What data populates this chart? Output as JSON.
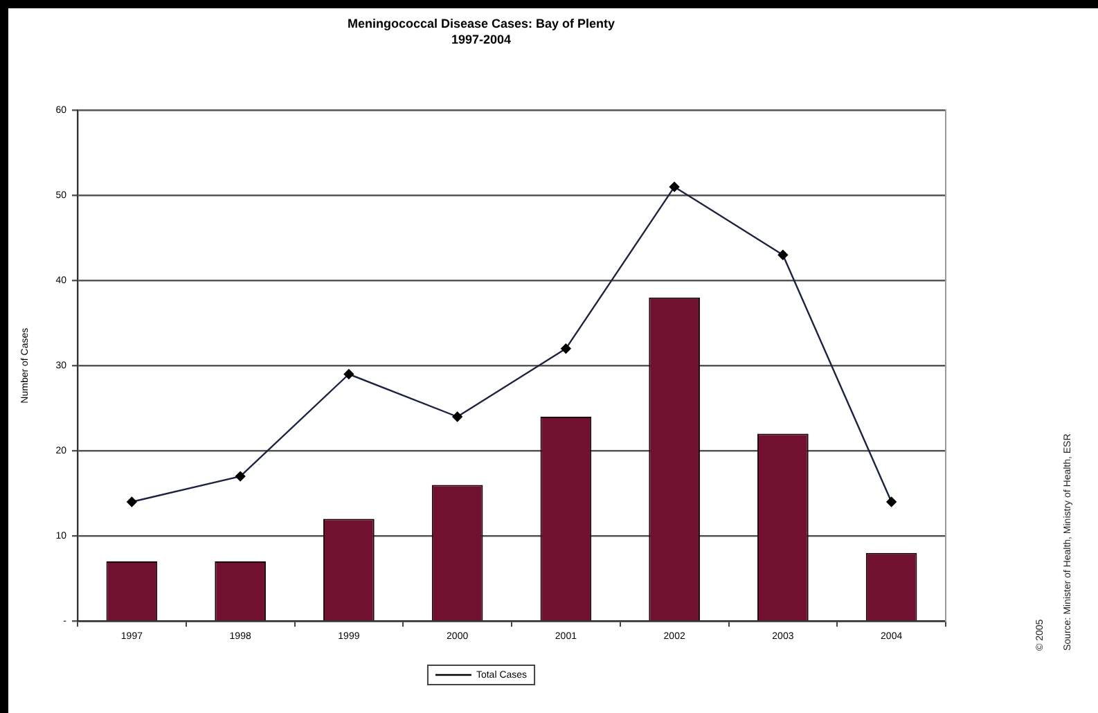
{
  "chart_data": {
    "type": "bar",
    "title": "Meningococcal Disease Cases: Bay of Plenty",
    "subtitle": "1997-2004",
    "ylabel": "Number of Cases",
    "categories": [
      "1997",
      "1998",
      "1999",
      "2000",
      "2001",
      "2002",
      "2003",
      "2004"
    ],
    "series": [
      {
        "color": "#72112f",
        "values": [
          7,
          7,
          12,
          16,
          24,
          38,
          22,
          8
        ]
      },
      {
        "type": "line",
        "name": "Total Cases",
        "color": "#1c2240",
        "values": [
          14,
          17,
          29,
          24,
          32,
          51,
          43,
          14
        ]
      }
    ],
    "ylim": [
      0,
      60
    ],
    "yticks": [
      {
        "value": 0,
        "label": "-"
      },
      10,
      20,
      30,
      40,
      50,
      60
    ],
    "grid": "y",
    "legend": "bottom",
    "marker": "diamond",
    "annotations": [
      "© 2005",
      "Source: Minister of Health, Ministry of Health, ESR"
    ]
  }
}
